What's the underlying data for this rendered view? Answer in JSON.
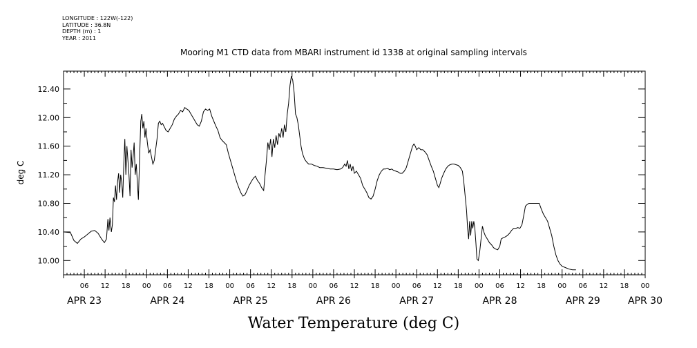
{
  "meta": {
    "longitude": "LONGITUDE : 122W(-122)",
    "latitude": "LATITUDE : 36.8N",
    "depth": "DEPTH (m) : 1",
    "year": "YEAR : 2011"
  },
  "chart_data": {
    "type": "line",
    "title": "Mooring M1 CTD data from MBARI instrument id 1338 at original sampling intervals",
    "xlabel": "Water Temperature (deg C)",
    "ylabel": "deg C",
    "ylim": [
      9.8,
      12.65
    ],
    "xlim": [
      0,
      168
    ],
    "x_units": "hours since APR 23 00:00",
    "yticks": [
      "10.00",
      "10.40",
      "10.80",
      "11.20",
      "11.60",
      "12.00",
      "12.40"
    ],
    "ytick_values": [
      10.0,
      10.4,
      10.8,
      11.2,
      11.6,
      12.0,
      12.4
    ],
    "xtick_hour_labels": [
      "06",
      "12",
      "18",
      "00",
      "06",
      "12",
      "18",
      "00",
      "06",
      "12",
      "18",
      "00",
      "06",
      "12",
      "18",
      "00",
      "06",
      "12",
      "18",
      "00",
      "06",
      "12",
      "18",
      "00",
      "06",
      "12",
      "18",
      "00"
    ],
    "xtick_hour_values": [
      6,
      12,
      18,
      24,
      30,
      36,
      42,
      48,
      54,
      60,
      66,
      72,
      78,
      84,
      90,
      96,
      102,
      108,
      114,
      120,
      126,
      132,
      138,
      144,
      150,
      156,
      162,
      168
    ],
    "day_labels": [
      "APR 23",
      "APR 24",
      "APR 25",
      "APR 26",
      "APR 27",
      "APR 28",
      "APR 29",
      "APR 30"
    ],
    "day_label_values": [
      6,
      30,
      54,
      78,
      102,
      126,
      150,
      168
    ],
    "line_color": "#000000",
    "points": [
      [
        0,
        10.4
      ],
      [
        2,
        10.39
      ],
      [
        3,
        10.28
      ],
      [
        4,
        10.24
      ],
      [
        5,
        10.3
      ],
      [
        6,
        10.33
      ],
      [
        7,
        10.37
      ],
      [
        8,
        10.41
      ],
      [
        9,
        10.42
      ],
      [
        10,
        10.38
      ],
      [
        11,
        10.3
      ],
      [
        11.8,
        10.25
      ],
      [
        12.4,
        10.3
      ],
      [
        12.8,
        10.58
      ],
      [
        13.1,
        10.42
      ],
      [
        13.4,
        10.6
      ],
      [
        13.8,
        10.4
      ],
      [
        14.1,
        10.5
      ],
      [
        14.4,
        10.88
      ],
      [
        14.7,
        10.82
      ],
      [
        15,
        11.05
      ],
      [
        15.3,
        10.85
      ],
      [
        15.6,
        11.1
      ],
      [
        15.9,
        11.22
      ],
      [
        16.2,
        10.95
      ],
      [
        16.5,
        11.2
      ],
      [
        16.8,
        11.1
      ],
      [
        17.1,
        10.88
      ],
      [
        17.4,
        11.35
      ],
      [
        17.7,
        11.7
      ],
      [
        18,
        11.2
      ],
      [
        18.3,
        11.6
      ],
      [
        18.6,
        11.4
      ],
      [
        18.9,
        11.2
      ],
      [
        19.2,
        10.9
      ],
      [
        19.5,
        11.55
      ],
      [
        19.8,
        11.3
      ],
      [
        20.1,
        11.45
      ],
      [
        20.4,
        11.65
      ],
      [
        20.7,
        11.2
      ],
      [
        21,
        11.35
      ],
      [
        21.3,
        11.1
      ],
      [
        21.6,
        10.85
      ],
      [
        22,
        11.5
      ],
      [
        22.3,
        11.95
      ],
      [
        22.6,
        12.05
      ],
      [
        22.9,
        11.85
      ],
      [
        23.2,
        11.95
      ],
      [
        23.5,
        11.72
      ],
      [
        23.8,
        11.85
      ],
      [
        24.2,
        11.65
      ],
      [
        24.6,
        11.5
      ],
      [
        25,
        11.55
      ],
      [
        25.4,
        11.45
      ],
      [
        25.8,
        11.35
      ],
      [
        26.2,
        11.4
      ],
      [
        26.6,
        11.55
      ],
      [
        27,
        11.7
      ],
      [
        27.4,
        11.92
      ],
      [
        27.8,
        11.95
      ],
      [
        28.2,
        11.9
      ],
      [
        28.6,
        11.92
      ],
      [
        29,
        11.88
      ],
      [
        29.6,
        11.82
      ],
      [
        30.2,
        11.8
      ],
      [
        30.8,
        11.85
      ],
      [
        31.4,
        11.9
      ],
      [
        32,
        11.98
      ],
      [
        32.6,
        12.02
      ],
      [
        33.2,
        12.05
      ],
      [
        33.8,
        12.1
      ],
      [
        34.4,
        12.08
      ],
      [
        35,
        12.14
      ],
      [
        35.6,
        12.12
      ],
      [
        36.2,
        12.1
      ],
      [
        36.8,
        12.05
      ],
      [
        37.4,
        12.0
      ],
      [
        38,
        11.95
      ],
      [
        38.6,
        11.9
      ],
      [
        39.2,
        11.88
      ],
      [
        39.8,
        11.95
      ],
      [
        40.4,
        12.08
      ],
      [
        41,
        12.12
      ],
      [
        41.6,
        12.1
      ],
      [
        42.2,
        12.12
      ],
      [
        42.8,
        12.02
      ],
      [
        43.4,
        11.95
      ],
      [
        44,
        11.88
      ],
      [
        44.6,
        11.82
      ],
      [
        45.2,
        11.72
      ],
      [
        45.8,
        11.68
      ],
      [
        46.4,
        11.65
      ],
      [
        47,
        11.62
      ],
      [
        47.6,
        11.5
      ],
      [
        48.2,
        11.4
      ],
      [
        48.8,
        11.3
      ],
      [
        49.4,
        11.2
      ],
      [
        50,
        11.1
      ],
      [
        50.6,
        11.02
      ],
      [
        51.2,
        10.95
      ],
      [
        51.8,
        10.9
      ],
      [
        52.4,
        10.92
      ],
      [
        53,
        10.98
      ],
      [
        53.6,
        11.05
      ],
      [
        54.2,
        11.1
      ],
      [
        54.8,
        11.15
      ],
      [
        55.4,
        11.18
      ],
      [
        56,
        11.12
      ],
      [
        56.6,
        11.08
      ],
      [
        57.2,
        11.02
      ],
      [
        57.8,
        10.98
      ],
      [
        58.2,
        11.2
      ],
      [
        58.6,
        11.4
      ],
      [
        59,
        11.65
      ],
      [
        59.4,
        11.55
      ],
      [
        59.8,
        11.7
      ],
      [
        60.2,
        11.45
      ],
      [
        60.6,
        11.7
      ],
      [
        61,
        11.58
      ],
      [
        61.4,
        11.75
      ],
      [
        61.8,
        11.62
      ],
      [
        62.2,
        11.78
      ],
      [
        62.6,
        11.72
      ],
      [
        63,
        11.85
      ],
      [
        63.4,
        11.72
      ],
      [
        63.8,
        11.9
      ],
      [
        64.2,
        11.8
      ],
      [
        64.6,
        12.05
      ],
      [
        65,
        12.2
      ],
      [
        65.4,
        12.45
      ],
      [
        65.8,
        12.58
      ],
      [
        66.2,
        12.52
      ],
      [
        66.6,
        12.35
      ],
      [
        67,
        12.05
      ],
      [
        67.4,
        12.0
      ],
      [
        67.8,
        11.9
      ],
      [
        68.2,
        11.75
      ],
      [
        68.6,
        11.6
      ],
      [
        69,
        11.5
      ],
      [
        69.6,
        11.42
      ],
      [
        70.2,
        11.38
      ],
      [
        70.8,
        11.35
      ],
      [
        71.6,
        11.35
      ],
      [
        72.4,
        11.33
      ],
      [
        73.2,
        11.32
      ],
      [
        74,
        11.3
      ],
      [
        75,
        11.3
      ],
      [
        76,
        11.29
      ],
      [
        77,
        11.28
      ],
      [
        78,
        11.28
      ],
      [
        79,
        11.27
      ],
      [
        80,
        11.28
      ],
      [
        80.6,
        11.3
      ],
      [
        81.2,
        11.35
      ],
      [
        81.6,
        11.32
      ],
      [
        82,
        11.4
      ],
      [
        82.4,
        11.28
      ],
      [
        82.8,
        11.35
      ],
      [
        83.2,
        11.25
      ],
      [
        83.6,
        11.32
      ],
      [
        84,
        11.22
      ],
      [
        84.6,
        11.25
      ],
      [
        85.2,
        11.2
      ],
      [
        85.8,
        11.15
      ],
      [
        86.4,
        11.05
      ],
      [
        87,
        11.0
      ],
      [
        87.6,
        10.95
      ],
      [
        88.2,
        10.88
      ],
      [
        88.8,
        10.86
      ],
      [
        89.4,
        10.9
      ],
      [
        90,
        11.0
      ],
      [
        90.6,
        11.12
      ],
      [
        91.2,
        11.2
      ],
      [
        91.8,
        11.25
      ],
      [
        92.4,
        11.28
      ],
      [
        93,
        11.28
      ],
      [
        93.6,
        11.29
      ],
      [
        94.2,
        11.27
      ],
      [
        94.8,
        11.28
      ],
      [
        95.4,
        11.26
      ],
      [
        96,
        11.25
      ],
      [
        96.6,
        11.24
      ],
      [
        97.2,
        11.22
      ],
      [
        97.8,
        11.22
      ],
      [
        98.4,
        11.25
      ],
      [
        99,
        11.3
      ],
      [
        99.6,
        11.4
      ],
      [
        100.2,
        11.5
      ],
      [
        100.8,
        11.6
      ],
      [
        101.2,
        11.63
      ],
      [
        101.6,
        11.6
      ],
      [
        102,
        11.55
      ],
      [
        102.6,
        11.58
      ],
      [
        103.2,
        11.55
      ],
      [
        103.8,
        11.55
      ],
      [
        104.4,
        11.52
      ],
      [
        105,
        11.48
      ],
      [
        105.6,
        11.4
      ],
      [
        106.2,
        11.32
      ],
      [
        106.8,
        11.25
      ],
      [
        107.4,
        11.15
      ],
      [
        108,
        11.05
      ],
      [
        108.4,
        11.02
      ],
      [
        108.8,
        11.08
      ],
      [
        109.2,
        11.15
      ],
      [
        109.8,
        11.22
      ],
      [
        110.4,
        11.28
      ],
      [
        111,
        11.32
      ],
      [
        111.6,
        11.34
      ],
      [
        112.2,
        11.35
      ],
      [
        112.8,
        11.35
      ],
      [
        113.4,
        11.34
      ],
      [
        114,
        11.33
      ],
      [
        114.6,
        11.3
      ],
      [
        115.2,
        11.25
      ],
      [
        115.6,
        11.1
      ],
      [
        116,
        10.9
      ],
      [
        116.4,
        10.7
      ],
      [
        116.7,
        10.45
      ],
      [
        117,
        10.3
      ],
      [
        117.3,
        10.55
      ],
      [
        117.6,
        10.35
      ],
      [
        117.9,
        10.55
      ],
      [
        118.2,
        10.45
      ],
      [
        118.5,
        10.55
      ],
      [
        118.8,
        10.45
      ],
      [
        119.1,
        10.25
      ],
      [
        119.4,
        10.02
      ],
      [
        119.8,
        10.0
      ],
      [
        120.2,
        10.12
      ],
      [
        120.6,
        10.3
      ],
      [
        121,
        10.48
      ],
      [
        121.4,
        10.4
      ],
      [
        121.8,
        10.35
      ],
      [
        122.4,
        10.3
      ],
      [
        123,
        10.25
      ],
      [
        123.6,
        10.22
      ],
      [
        124.2,
        10.18
      ],
      [
        124.8,
        10.16
      ],
      [
        125.4,
        10.15
      ],
      [
        126,
        10.2
      ],
      [
        126.4,
        10.3
      ],
      [
        127,
        10.32
      ],
      [
        127.6,
        10.33
      ],
      [
        128.2,
        10.35
      ],
      [
        128.8,
        10.38
      ],
      [
        129.4,
        10.42
      ],
      [
        130,
        10.45
      ],
      [
        130.6,
        10.45
      ],
      [
        131.2,
        10.46
      ],
      [
        131.8,
        10.45
      ],
      [
        132.4,
        10.5
      ],
      [
        133,
        10.65
      ],
      [
        133.4,
        10.76
      ],
      [
        133.8,
        10.78
      ],
      [
        134.4,
        10.8
      ],
      [
        135,
        10.8
      ],
      [
        135.6,
        10.8
      ],
      [
        136.2,
        10.8
      ],
      [
        136.8,
        10.8
      ],
      [
        137.4,
        10.8
      ],
      [
        138,
        10.72
      ],
      [
        138.6,
        10.65
      ],
      [
        139.2,
        10.6
      ],
      [
        139.8,
        10.55
      ],
      [
        140.4,
        10.45
      ],
      [
        141,
        10.35
      ],
      [
        141.6,
        10.2
      ],
      [
        142.2,
        10.08
      ],
      [
        142.8,
        10.0
      ],
      [
        143.4,
        9.95
      ],
      [
        144,
        9.92
      ],
      [
        145,
        9.9
      ],
      [
        146,
        9.88
      ],
      [
        147,
        9.87
      ],
      [
        148,
        9.87
      ]
    ]
  }
}
